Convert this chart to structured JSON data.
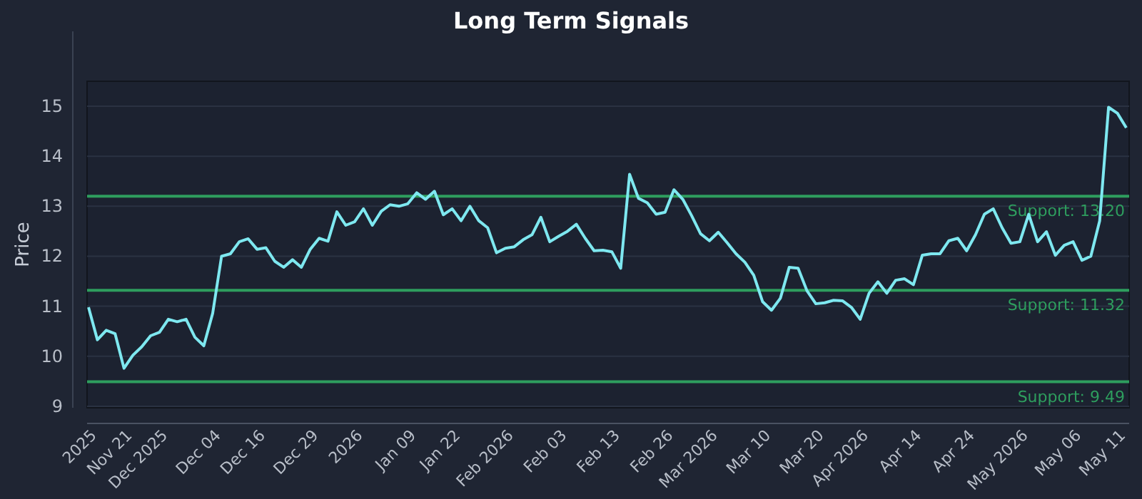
{
  "chart_data": {
    "type": "line",
    "title": "Long Term Signals",
    "ylabel": "Price",
    "ylim": [
      8.97,
      15.5
    ],
    "yticks": [
      9,
      10,
      11,
      12,
      13,
      14,
      15
    ],
    "categories": [
      null,
      "2025",
      null,
      null,
      null,
      "Nov 21",
      null,
      null,
      null,
      "Dec 2025",
      null,
      null,
      null,
      null,
      null,
      "Dec 04",
      null,
      null,
      null,
      null,
      "Dec 16",
      null,
      null,
      null,
      null,
      null,
      "Dec 29",
      null,
      null,
      null,
      null,
      "2026",
      null,
      null,
      null,
      null,
      null,
      "Jan 09",
      null,
      null,
      null,
      null,
      "Jan 22",
      null,
      null,
      null,
      null,
      null,
      "Feb 2026",
      null,
      null,
      null,
      null,
      null,
      "Feb 03",
      null,
      null,
      null,
      null,
      null,
      "Feb 13",
      null,
      null,
      null,
      null,
      null,
      "Feb 26",
      null,
      null,
      null,
      null,
      "Mar 2026",
      null,
      null,
      null,
      null,
      null,
      "Mar 10",
      null,
      null,
      null,
      null,
      null,
      "Mar 20",
      null,
      null,
      null,
      null,
      "Apr 2026",
      null,
      null,
      null,
      null,
      null,
      "Apr 14",
      null,
      null,
      null,
      null,
      null,
      "Apr 24",
      null,
      null,
      null,
      null,
      null,
      "May 2026",
      null,
      null,
      null,
      null,
      null,
      "May 06",
      null,
      null,
      null,
      null,
      "May 11"
    ],
    "grid": "y",
    "marker": "none",
    "line_style": "solid",
    "series": [
      {
        "color": "#7ee8f0",
        "values": [
          10.98,
          10.33,
          10.52,
          10.45,
          9.76,
          10.02,
          10.19,
          10.41,
          10.48,
          10.74,
          10.69,
          10.74,
          10.38,
          10.21,
          10.86,
          12.0,
          12.05,
          12.29,
          12.35,
          12.14,
          12.17,
          11.9,
          11.78,
          11.93,
          11.78,
          12.14,
          12.36,
          12.3,
          12.89,
          12.62,
          12.69,
          12.95,
          12.62,
          12.9,
          13.03,
          13.0,
          13.05,
          13.27,
          13.14,
          13.3,
          12.83,
          12.95,
          12.71,
          13.0,
          12.71,
          12.57,
          12.07,
          12.16,
          12.19,
          12.33,
          12.43,
          12.78,
          12.29,
          12.4,
          12.5,
          12.64,
          12.36,
          12.11,
          12.12,
          12.09,
          11.76,
          13.64,
          13.16,
          13.07,
          12.84,
          12.88,
          13.33,
          13.14,
          12.81,
          12.45,
          12.31,
          12.48,
          12.27,
          12.05,
          11.88,
          11.62,
          11.09,
          10.92,
          11.16,
          11.78,
          11.76,
          11.31,
          11.05,
          11.07,
          11.12,
          11.11,
          10.98,
          10.74,
          11.26,
          11.49,
          11.26,
          11.52,
          11.55,
          11.43,
          12.02,
          12.05,
          12.05,
          12.31,
          12.36,
          12.11,
          12.43,
          12.84,
          12.95,
          12.57,
          12.26,
          12.29,
          12.84,
          12.29,
          12.49,
          12.02,
          12.22,
          12.29,
          11.92,
          12.0,
          12.71,
          14.98,
          14.86,
          14.57
        ]
      }
    ],
    "ref_lines": [
      {
        "axis": "y",
        "value": 13.2,
        "label": "Support: 13.20",
        "color": "#2e9e5e"
      },
      {
        "axis": "y",
        "value": 11.32,
        "label": "Support: 11.32",
        "color": "#2e9e5e"
      },
      {
        "axis": "y",
        "value": 9.49,
        "label": "Support: 9.49",
        "color": "#2e9e5e"
      }
    ]
  }
}
